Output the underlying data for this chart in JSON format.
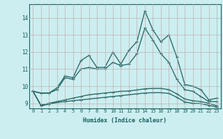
{
  "title": "",
  "xlabel": "Humidex (Indice chaleur)",
  "background_color": "#cceef0",
  "grid_color": "#c0b0b0",
  "line_color": "#1a6060",
  "x": [
    0,
    1,
    2,
    3,
    4,
    5,
    6,
    7,
    8,
    9,
    10,
    11,
    12,
    13,
    14,
    15,
    16,
    17,
    18,
    19,
    20,
    21,
    22,
    23
  ],
  "lines": [
    [
      9.7,
      9.6,
      9.6,
      9.9,
      10.6,
      10.5,
      11.5,
      11.8,
      11.1,
      11.1,
      12.0,
      11.3,
      12.1,
      12.6,
      14.4,
      13.3,
      12.6,
      13.0,
      11.7,
      10.1,
      10.0,
      9.8,
      9.2,
      9.3
    ],
    [
      9.7,
      9.6,
      9.6,
      9.8,
      10.5,
      10.4,
      11.0,
      11.1,
      11.0,
      11.0,
      11.4,
      11.2,
      11.3,
      11.9,
      13.4,
      12.7,
      11.9,
      11.4,
      10.4,
      9.8,
      9.7,
      9.4,
      9.1,
      9.1
    ],
    [
      9.7,
      8.9,
      9.0,
      9.1,
      9.2,
      9.3,
      9.4,
      9.5,
      9.55,
      9.6,
      9.65,
      9.7,
      9.72,
      9.78,
      9.85,
      9.87,
      9.87,
      9.8,
      9.55,
      9.25,
      9.15,
      9.1,
      9.0,
      8.85
    ],
    [
      9.7,
      8.85,
      8.95,
      9.05,
      9.1,
      9.15,
      9.2,
      9.25,
      9.3,
      9.35,
      9.4,
      9.45,
      9.5,
      9.55,
      9.6,
      9.62,
      9.62,
      9.58,
      9.35,
      9.08,
      9.0,
      8.98,
      8.88,
      8.78
    ]
  ],
  "ylim": [
    8.7,
    14.8
  ],
  "yticks": [
    9,
    10,
    11,
    12,
    13,
    14
  ],
  "xticks": [
    0,
    1,
    2,
    3,
    4,
    5,
    6,
    7,
    8,
    9,
    10,
    11,
    12,
    13,
    14,
    15,
    16,
    17,
    18,
    19,
    20,
    21,
    22,
    23
  ]
}
